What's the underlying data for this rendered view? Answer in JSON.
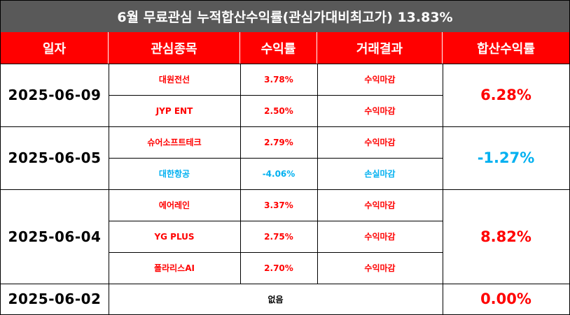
{
  "title": "6월 무료관심 누적합산수익률(관심가대비최고가) 13.83%",
  "headers": [
    "일자",
    "관심종목",
    "수익률",
    "거래결과",
    "합산수익률"
  ],
  "groups": [
    {
      "date": "2025-06-09",
      "total": "6.28%",
      "total_color": "red",
      "rows": [
        {
          "stock": "대원전선",
          "rate": "3.78%",
          "result": "수익마감",
          "color": "red"
        },
        {
          "stock": "JYP ENT",
          "rate": "2.50%",
          "result": "수익마감",
          "color": "red"
        }
      ]
    },
    {
      "date": "2025-06-05",
      "total": "-1.27%",
      "total_color": "blue",
      "rows": [
        {
          "stock": "슈어소프트테크",
          "rate": "2.79%",
          "result": "수익마감",
          "color": "red"
        },
        {
          "stock": "대한항공",
          "rate": "-4.06%",
          "result": "손실마감",
          "color": "blue"
        }
      ]
    },
    {
      "date": "2025-06-04",
      "total": "8.82%",
      "total_color": "red",
      "rows": [
        {
          "stock": "에어레인",
          "rate": "3.37%",
          "result": "수익마감",
          "color": "red"
        },
        {
          "stock": "YG PLUS",
          "rate": "2.75%",
          "result": "수익마감",
          "color": "red"
        },
        {
          "stock": "폴라리스AI",
          "rate": "2.70%",
          "result": "수익마감",
          "color": "red"
        }
      ]
    },
    {
      "date": "2025-06-02",
      "total": "0.00%",
      "total_color": "red",
      "none_text": "없음",
      "rows": []
    }
  ]
}
